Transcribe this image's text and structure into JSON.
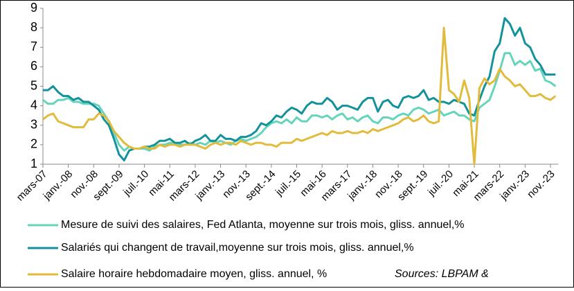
{
  "chart_data": {
    "type": "line",
    "categories": [
      "mars-07",
      null,
      null,
      null,
      null,
      "janv.-08",
      null,
      null,
      null,
      null,
      "nov.-08",
      null,
      null,
      null,
      null,
      "sept.-09",
      null,
      null,
      null,
      null,
      "juil.-10",
      null,
      null,
      null,
      null,
      "mai-11",
      null,
      null,
      null,
      null,
      "mars-12",
      null,
      null,
      null,
      null,
      "janv.-13",
      null,
      null,
      null,
      null,
      "nov.-13",
      null,
      null,
      null,
      null,
      "sept.-14",
      null,
      null,
      null,
      null,
      "juil.-15",
      null,
      null,
      null,
      null,
      "mai-16",
      null,
      null,
      null,
      null,
      "mars-17",
      null,
      null,
      null,
      null,
      "janv.-18",
      null,
      null,
      null,
      null,
      "nov.-18",
      null,
      null,
      null,
      null,
      "sept.-19",
      null,
      null,
      null,
      null,
      "juil.-20",
      null,
      null,
      null,
      null,
      "mai-21",
      null,
      null,
      null,
      null,
      "mars-22",
      null,
      null,
      null,
      null,
      "janv.-23",
      null,
      null,
      null,
      null,
      "nov.-23",
      null
    ],
    "series": [
      {
        "name": "Mesure de suivi des salaires, Fed Atlanta, moyenne sur trois mois, gliss. annuel,%",
        "color": "#66d4bb",
        "values": [
          4.3,
          4.1,
          4.1,
          4.3,
          4.3,
          4.4,
          4.2,
          4.2,
          4.1,
          4.1,
          4.1,
          4.0,
          3.6,
          3.2,
          2.6,
          2.0,
          1.7,
          1.9,
          1.8,
          1.8,
          1.8,
          1.7,
          1.9,
          2.0,
          2.0,
          2.1,
          2.1,
          2.0,
          2.0,
          2.1,
          2.0,
          2.1,
          2.0,
          2.2,
          2.1,
          2.2,
          2.1,
          2.0,
          2.2,
          2.3,
          2.2,
          2.3,
          2.4,
          2.6,
          2.9,
          3.1,
          3.2,
          3.1,
          3.3,
          3.1,
          3.4,
          3.2,
          3.2,
          3.5,
          3.5,
          3.4,
          3.5,
          3.3,
          3.5,
          3.6,
          3.3,
          3.4,
          3.2,
          3.4,
          3.5,
          3.2,
          3.1,
          3.4,
          3.4,
          3.3,
          3.5,
          3.6,
          3.5,
          3.8,
          3.9,
          3.8,
          3.6,
          3.7,
          3.8,
          3.5,
          3.6,
          3.7,
          3.5,
          3.5,
          3.3,
          3.2,
          3.9,
          4.1,
          4.3,
          5.0,
          5.8,
          6.7,
          6.7,
          6.1,
          6.3,
          6.1,
          6.3,
          5.8,
          5.9,
          5.3,
          5.2,
          5.0
        ]
      },
      {
        "name": "Salariés qui changent de travail,moyenne sur trois mois, gliss. annuel,%",
        "color": "#13929b",
        "values": [
          4.8,
          4.8,
          5.0,
          4.7,
          4.5,
          4.5,
          4.3,
          4.4,
          4.2,
          4.2,
          4.0,
          3.8,
          3.3,
          3.0,
          2.3,
          1.5,
          1.2,
          1.7,
          1.8,
          1.8,
          1.9,
          1.9,
          2.0,
          2.2,
          2.2,
          2.3,
          2.1,
          2.1,
          2.2,
          2.0,
          2.2,
          2.3,
          2.5,
          2.2,
          2.2,
          2.5,
          2.3,
          2.3,
          2.2,
          2.4,
          2.4,
          2.5,
          2.7,
          3.1,
          3.0,
          3.2,
          3.5,
          3.4,
          3.7,
          3.9,
          3.8,
          3.6,
          4.0,
          4.2,
          4.1,
          4.1,
          4.4,
          4.2,
          3.8,
          4.0,
          4.0,
          3.9,
          3.8,
          4.2,
          4.4,
          4.4,
          3.7,
          4.2,
          4.3,
          4.0,
          3.9,
          4.4,
          4.5,
          4.4,
          4.5,
          4.8,
          4.3,
          4.4,
          4.2,
          4.2,
          4.1,
          4.3,
          4.2,
          4.1,
          3.6,
          3.5,
          4.3,
          5.0,
          5.5,
          6.8,
          7.2,
          8.5,
          8.2,
          7.6,
          8.0,
          7.2,
          7.0,
          6.4,
          6.1,
          5.6,
          5.6,
          5.6
        ]
      },
      {
        "name": "Salaire horaire hebdomadaire moyen, gliss. annuel, %",
        "color": "#e2bb3c",
        "values": [
          3.3,
          3.5,
          3.6,
          3.2,
          3.1,
          3.0,
          2.9,
          2.9,
          2.9,
          3.3,
          3.3,
          3.6,
          3.5,
          3.2,
          2.7,
          2.4,
          2.1,
          1.9,
          1.8,
          1.8,
          1.9,
          1.8,
          1.8,
          2.0,
          1.9,
          2.0,
          2.0,
          1.9,
          2.0,
          2.0,
          2.0,
          1.9,
          1.8,
          2.0,
          2.1,
          2.0,
          2.1,
          2.1,
          2.0,
          2.2,
          2.1,
          2.0,
          2.1,
          2.1,
          2.0,
          2.0,
          1.9,
          2.1,
          2.1,
          2.1,
          2.3,
          2.2,
          2.3,
          2.4,
          2.5,
          2.6,
          2.5,
          2.7,
          2.6,
          2.6,
          2.7,
          2.6,
          2.6,
          2.7,
          2.6,
          2.8,
          2.7,
          2.8,
          2.9,
          3.0,
          3.1,
          3.3,
          3.4,
          3.2,
          3.3,
          3.5,
          3.2,
          3.1,
          3.2,
          8.0,
          4.8,
          4.6,
          4.2,
          5.3,
          4.4,
          1.0,
          4.9,
          5.4,
          5.1,
          5.3,
          5.9,
          5.5,
          5.3,
          5.0,
          5.1,
          4.8,
          4.5,
          4.5,
          4.6,
          4.4,
          4.3,
          4.5
        ]
      }
    ],
    "ylim": [
      1,
      9
    ],
    "yticks": [
      1,
      2,
      3,
      4,
      5,
      6,
      7,
      8,
      9
    ],
    "annotation": "Sources: LBPAM &"
  }
}
